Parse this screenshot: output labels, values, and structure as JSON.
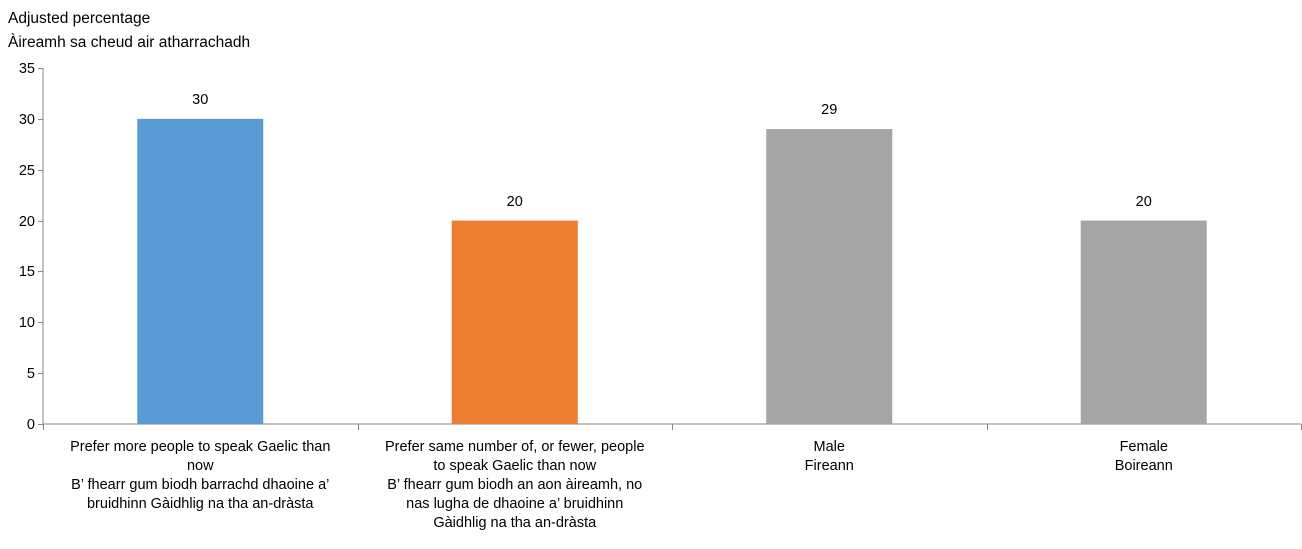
{
  "chart_data": {
    "type": "bar",
    "ylabel": [
      "Adjusted percentage",
      "Àireamh sa cheud air atharrachadh"
    ],
    "ylim": [
      0,
      35
    ],
    "yticks": [
      0,
      5,
      10,
      15,
      20,
      25,
      30,
      35
    ],
    "categories": [
      {
        "lines": [
          "Prefer more people to speak Gaelic than",
          "now",
          "B’ fhearr gum biodh barrachd dhaoine a’",
          "bruidhinn Gàidhlig na tha an-dràsta"
        ]
      },
      {
        "lines": [
          "Prefer same number of, or fewer, people",
          "to speak Gaelic than now",
          "B’ fhearr gum biodh an aon àireamh, no",
          "nas lugha de dhaoine a’ bruidhinn",
          "Gàidhlig na tha an-dràsta"
        ]
      },
      {
        "lines": [
          "Male",
          "Fireann"
        ]
      },
      {
        "lines": [
          "Female",
          "Boireann"
        ]
      }
    ],
    "values": [
      30,
      20,
      29,
      20
    ],
    "data_labels": [
      "30",
      "20",
      "29",
      "20"
    ],
    "colors": [
      "#5b9bd5",
      "#ed7d31",
      "#a5a5a5",
      "#a5a5a5"
    ],
    "grid": false,
    "legend": "none"
  }
}
